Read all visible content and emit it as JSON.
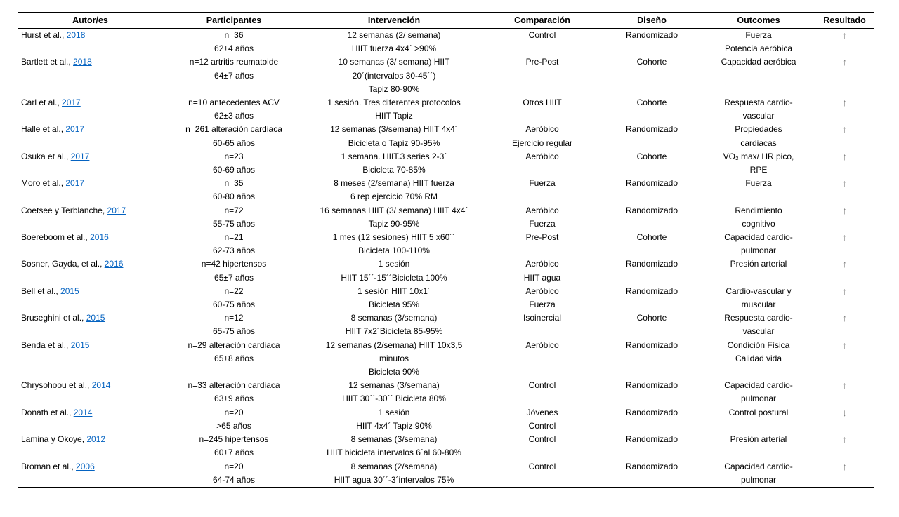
{
  "table": {
    "columns": [
      "Autor/es",
      "Participantes",
      "Intervención",
      "Comparación",
      "Diseño",
      "Outcomes",
      "Resultado"
    ],
    "link_color": "#0563C1",
    "arrow_up": "↑",
    "arrow_down": "↓",
    "rows": [
      {
        "author_text": "Hurst et al., ",
        "author_year": "2018",
        "participantes": [
          "n=36",
          "62±4 años"
        ],
        "intervencion": [
          "12 semanas (2/ semana)",
          "HIIT fuerza 4x4´ >90%"
        ],
        "comparacion": [
          "Control"
        ],
        "diseno": [
          "Randomizado"
        ],
        "outcomes": [
          "Fuerza",
          "Potencia aeróbica"
        ],
        "resultado": "up"
      },
      {
        "author_text": "Bartlett et al., ",
        "author_year": "2018",
        "participantes": [
          "n=12 artritis reumatoide",
          "64±7 años"
        ],
        "intervencion": [
          "10 semanas (3/ semana) HIIT",
          "20´(intervalos 30-45´´)",
          "Tapiz 80-90%"
        ],
        "comparacion": [
          "Pre-Post"
        ],
        "diseno": [
          "Cohorte"
        ],
        "outcomes": [
          "Capacidad aeróbica"
        ],
        "resultado": "up"
      },
      {
        "author_text": "Carl et al., ",
        "author_year": "2017",
        "participantes": [
          "n=10 antecedentes ACV",
          "62±3 años"
        ],
        "intervencion": [
          "1 sesión. Tres diferentes protocolos",
          "HIIT Tapiz"
        ],
        "comparacion": [
          "Otros HIIT"
        ],
        "diseno": [
          "Cohorte"
        ],
        "outcomes": [
          "Respuesta cardio-",
          "vascular"
        ],
        "resultado": "up"
      },
      {
        "author_text": "Halle et al., ",
        "author_year": "2017",
        "participantes": [
          "n=261 alteración cardiaca",
          "60-65 años"
        ],
        "intervencion": [
          "12 semanas (3/semana) HIIT 4x4´",
          "Bicicleta o Tapiz 90-95%"
        ],
        "comparacion": [
          "Aeróbico",
          "Ejercicio regular"
        ],
        "diseno": [
          "Randomizado"
        ],
        "outcomes": [
          "Propiedades",
          "cardiacas"
        ],
        "resultado": "up"
      },
      {
        "author_text": "Osuka et al., ",
        "author_year": "2017",
        "participantes": [
          "n=23",
          "60-69 años"
        ],
        "intervencion": [
          "1 semana. HIIT.3 series 2-3´",
          "Bicicleta 70-85%"
        ],
        "comparacion": [
          "Aeróbico"
        ],
        "diseno": [
          "Cohorte"
        ],
        "outcomes": [
          "VO₂ max/ HR pico,",
          "RPE"
        ],
        "resultado": "up"
      },
      {
        "author_text": "Moro et al., ",
        "author_year": "2017",
        "participantes": [
          "n=35",
          "60-80 años"
        ],
        "intervencion": [
          "8 meses (2/semana) HIIT fuerza",
          "6 rep ejercicio 70% RM"
        ],
        "comparacion": [
          "Fuerza"
        ],
        "diseno": [
          "Randomizado"
        ],
        "outcomes": [
          "Fuerza"
        ],
        "resultado": "up"
      },
      {
        "author_text": "Coetsee y Terblanche, ",
        "author_year": "2017",
        "participantes": [
          "n=72",
          "55-75 años"
        ],
        "intervencion": [
          "16 semanas HIIT (3/ semana) HIIT 4x4´",
          "Tapiz 90-95%"
        ],
        "comparacion": [
          "Aeróbico",
          "Fuerza"
        ],
        "diseno": [
          "Randomizado"
        ],
        "outcomes": [
          "Rendimiento",
          "cognitivo"
        ],
        "resultado": "up"
      },
      {
        "author_text": "Boereboom et al., ",
        "author_year": "2016",
        "participantes": [
          "n=21",
          "62-73 años"
        ],
        "intervencion": [
          "1 mes (12 sesiones) HIIT 5 x60´´",
          "Bicicleta 100-110%"
        ],
        "comparacion": [
          "Pre-Post"
        ],
        "diseno": [
          "Cohorte"
        ],
        "outcomes": [
          "Capacidad cardio-",
          "pulmonar"
        ],
        "resultado": "up"
      },
      {
        "author_text": "Sosner, Gayda, et al., ",
        "author_year": "2016",
        "participantes": [
          "n=42 hipertensos",
          "65±7 años"
        ],
        "intervencion": [
          "1 sesión",
          "HIIT 15´´-15´´Bicicleta 100%"
        ],
        "comparacion": [
          "Aeróbico",
          "HIIT agua"
        ],
        "diseno": [
          "Randomizado"
        ],
        "outcomes": [
          "Presión arterial"
        ],
        "resultado": "up"
      },
      {
        "author_text": "Bell et al., ",
        "author_year": "2015",
        "participantes": [
          "n=22",
          "60-75 años"
        ],
        "intervencion": [
          "1 sesión HIIT 10x1´",
          "Bicicleta 95%"
        ],
        "comparacion": [
          "Aeróbico",
          "Fuerza"
        ],
        "diseno": [
          "Randomizado"
        ],
        "outcomes": [
          "Cardio-vascular y",
          "muscular"
        ],
        "resultado": "up"
      },
      {
        "author_text": "Bruseghini et al., ",
        "author_year": "2015",
        "participantes": [
          "n=12",
          "65-75 años"
        ],
        "intervencion": [
          "8 semanas (3/semana)",
          "HIIT 7x2´Bicicleta 85-95%"
        ],
        "comparacion": [
          "Isoinercial"
        ],
        "diseno": [
          "Cohorte"
        ],
        "outcomes": [
          "Respuesta cardio-",
          "vascular"
        ],
        "resultado": "up"
      },
      {
        "author_text": "Benda et al., ",
        "author_year": "2015",
        "participantes": [
          "n=29 alteración cardiaca",
          "65±8 años"
        ],
        "intervencion": [
          "12 semanas (2/semana) HIIT 10x3,5",
          "minutos",
          "Bicicleta 90%"
        ],
        "comparacion": [
          "Aeróbico"
        ],
        "diseno": [
          "Randomizado"
        ],
        "outcomes": [
          "Condición Física",
          "Calidad vida"
        ],
        "resultado": "up"
      },
      {
        "author_text": "Chrysohoou et al., ",
        "author_year": "2014",
        "participantes": [
          "n=33 alteración cardiaca",
          "63±9 años"
        ],
        "intervencion": [
          "12 semanas (3/semana)",
          "HIIT 30´´-30´´ Bicicleta 80%"
        ],
        "comparacion": [
          "Control"
        ],
        "diseno": [
          "Randomizado"
        ],
        "outcomes": [
          "Capacidad cardio-",
          "pulmonar"
        ],
        "resultado": "up"
      },
      {
        "author_text": "Donath et al., ",
        "author_year": "2014",
        "participantes": [
          "n=20",
          ">65 años"
        ],
        "intervencion": [
          "1 sesión",
          "HIIT 4x4´ Tapiz 90%"
        ],
        "comparacion": [
          "Jóvenes",
          "Control"
        ],
        "diseno": [
          "Randomizado"
        ],
        "outcomes": [
          "Control postural"
        ],
        "resultado": "down"
      },
      {
        "author_text": "Lamina y Okoye, ",
        "author_year": "2012",
        "participantes": [
          "n=245 hipertensos",
          "60±7 años"
        ],
        "intervencion": [
          "8 semanas (3/semana)",
          "HIIT bicicleta intervalos 6´al 60-80%"
        ],
        "comparacion": [
          "Control"
        ],
        "diseno": [
          "Randomizado"
        ],
        "outcomes": [
          "Presión arterial"
        ],
        "resultado": "up"
      },
      {
        "author_text": "Broman et al., ",
        "author_year": "2006",
        "participantes": [
          "n=20",
          "64-74 años"
        ],
        "intervencion": [
          "8 semanas (2/semana)",
          "HIIT agua 30´´-3´intervalos 75%"
        ],
        "comparacion": [
          "Control"
        ],
        "diseno": [
          "Randomizado"
        ],
        "outcomes": [
          "Capacidad cardio-",
          "pulmonar"
        ],
        "resultado": "up"
      }
    ]
  }
}
